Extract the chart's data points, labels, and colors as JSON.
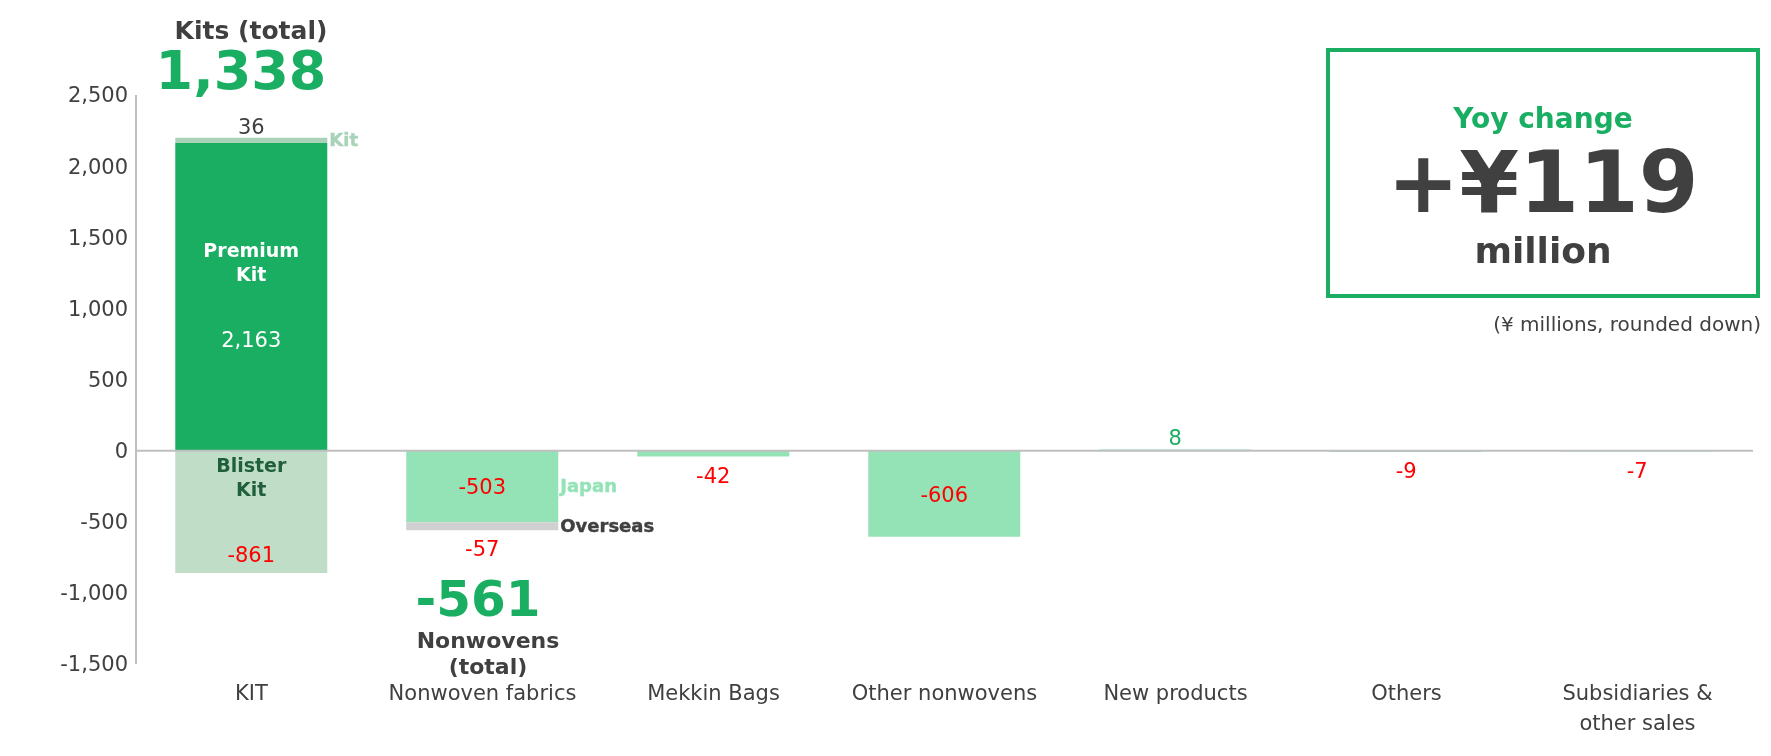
{
  "chart_data": {
    "type": "bar",
    "stacked": true,
    "categories": [
      "KIT",
      "Nonwoven fabrics",
      "Mekkin Bags",
      "Other nonwovens",
      "New products",
      "Others",
      "Subsidiaries & other sales"
    ],
    "series": [
      {
        "name": "Premium Kit",
        "color": "#1aae63",
        "values": [
          2163,
          null,
          null,
          null,
          null,
          null,
          null
        ],
        "value_labels": [
          "2,163",
          null,
          null,
          null,
          null,
          null,
          null
        ]
      },
      {
        "name": "Kit",
        "color": "#a9d3b9",
        "values": [
          36,
          null,
          null,
          null,
          null,
          null,
          null
        ]
      },
      {
        "name": "Blister Kit",
        "color": "#c0ddc8",
        "values": [
          -861,
          null,
          null,
          null,
          null,
          null,
          null
        ]
      },
      {
        "name": "Japan",
        "color": "#94e3b7",
        "values": [
          null,
          -503,
          null,
          null,
          null,
          null,
          null
        ]
      },
      {
        "name": "Overseas",
        "color": "#d0d0d0",
        "values": [
          null,
          -57,
          null,
          null,
          null,
          null,
          null
        ]
      },
      {
        "color": "#94e3b7",
        "values": [
          null,
          null,
          -42,
          -606,
          8,
          -9,
          -7
        ]
      }
    ],
    "ylim": [
      -1500,
      2500
    ],
    "yticks": [
      {
        "value": -1500,
        "label": "-1,500"
      },
      {
        "value": -1000,
        "label": "-1,000"
      },
      -500,
      0,
      500,
      {
        "value": 1000,
        "label": "1,000"
      },
      {
        "value": 1500,
        "label": "1,500"
      },
      {
        "value": 2000,
        "label": "2,000"
      },
      {
        "value": 2500,
        "label": "2,500"
      }
    ],
    "grid": false,
    "legend": false,
    "data_labels": true,
    "ref_lines": [
      {
        "axis": "y",
        "value": 0,
        "color": "#bfbfbf"
      }
    ],
    "annotations": [
      "Kits (total)",
      "1,338",
      "-561",
      "Nonwovens (total)",
      "Yoy change",
      "+¥119",
      "million",
      "(¥ millions, rounded down)"
    ]
  }
}
